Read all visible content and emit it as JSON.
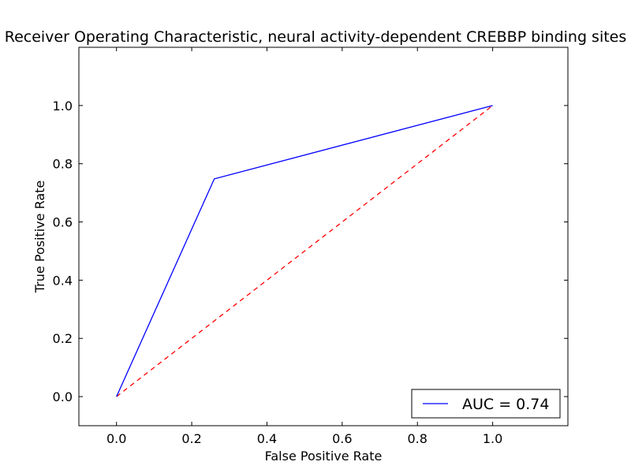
{
  "chart_data": {
    "type": "line",
    "title": "Receiver Operating Characteristic, neural activity-dependent CREBBP binding sites",
    "xlabel": "False Positive Rate",
    "ylabel": "True Positive Rate",
    "xlim": [
      -0.1,
      1.2
    ],
    "ylim": [
      -0.1,
      1.2
    ],
    "xticks": [
      0.0,
      0.2,
      0.4,
      0.6,
      0.8,
      1.0
    ],
    "yticks": [
      0.0,
      0.2,
      0.4,
      0.6,
      0.8,
      1.0
    ],
    "xtick_labels": [
      "0.0",
      "0.2",
      "0.4",
      "0.6",
      "0.8",
      "1.0"
    ],
    "ytick_labels": [
      "0.0",
      "0.2",
      "0.4",
      "0.6",
      "0.8",
      "1.0"
    ],
    "grid": false,
    "legend_position": "lower-right",
    "series": [
      {
        "name": "AUC = 0.74",
        "style": "solid",
        "color": "#0000ff",
        "x": [
          0.0,
          0.26,
          1.0
        ],
        "y": [
          0.0,
          0.748,
          1.0
        ]
      },
      {
        "style": "dashed",
        "color": "#ff0000",
        "x": [
          0.0,
          1.0
        ],
        "y": [
          0.0,
          1.0
        ]
      }
    ]
  }
}
